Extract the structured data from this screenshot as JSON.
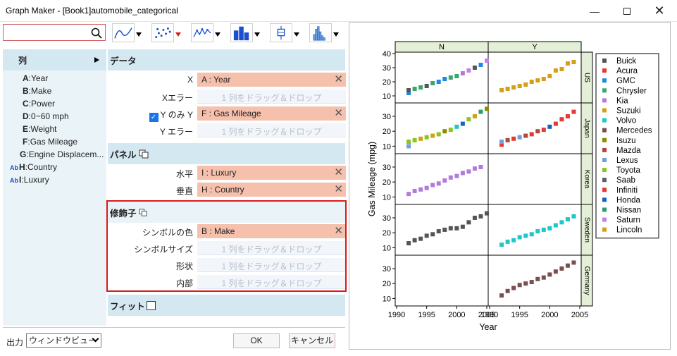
{
  "window": {
    "title": "Graph Maker - [Book1]automobile_categorical"
  },
  "search": {
    "placeholder": ""
  },
  "left_panel": {
    "header": "列",
    "columns": [
      {
        "key": "A",
        "name": "Year",
        "ab": ""
      },
      {
        "key": "B",
        "name": "Make",
        "ab": ""
      },
      {
        "key": "C",
        "name": "Power",
        "ab": ""
      },
      {
        "key": "D",
        "name": "0~60 mph",
        "ab": ""
      },
      {
        "key": "E",
        "name": "Weight",
        "ab": ""
      },
      {
        "key": "F",
        "name": "Gas Mileage",
        "ab": ""
      },
      {
        "key": "G",
        "name": "Engine Displacem...",
        "ab": ""
      },
      {
        "key": "H",
        "name": "Country",
        "ab": "Ab"
      },
      {
        "key": "I",
        "name": "Luxury",
        "ab": "Ab"
      }
    ]
  },
  "data_section": {
    "header": "データ",
    "rows": [
      {
        "label": "X",
        "value": "A : Year",
        "filled": true
      },
      {
        "label": "Xエラー",
        "value": "1 列をドラッグ＆ドロップ",
        "filled": false
      },
      {
        "label": "Y のみ Y",
        "value": "F : Gas Mileage",
        "filled": true
      },
      {
        "label": "Y エラー",
        "value": "1 列をドラッグ＆ドロップ",
        "filled": false
      }
    ]
  },
  "panel_section": {
    "header": "パネル",
    "rows": [
      {
        "label": "水平",
        "value": "I : Luxury",
        "filled": true
      },
      {
        "label": "垂直",
        "value": "H : Country",
        "filled": true
      }
    ]
  },
  "modifier_section": {
    "header": "修飾子",
    "rows": [
      {
        "label": "シンボルの色",
        "value": "B : Make",
        "filled": true
      },
      {
        "label": "シンボルサイズ",
        "value": "1 列をドラッグ＆ドロップ",
        "filled": false
      },
      {
        "label": "形状",
        "value": "1 列をドラッグ＆ドロップ",
        "filled": false
      },
      {
        "label": "内部",
        "value": "1 列をドラッグ＆ドロップ",
        "filled": false
      }
    ]
  },
  "fit_section": {
    "header": "フィット"
  },
  "bottom": {
    "output_label": "出力",
    "output_value": "ウィンドウビュー",
    "ok": "OK",
    "cancel": "キャンセル"
  },
  "chart_data": {
    "type": "scatter",
    "xlabel": "Year",
    "ylabel": "Gas Mileage (mpg)",
    "x_ticks": [
      "1990",
      "1995",
      "2000",
      "2005"
    ],
    "xlim": [
      1990,
      2005
    ],
    "columns": [
      "N",
      "Y"
    ],
    "rows": [
      {
        "name": "US",
        "ylim": [
          5,
          40
        ],
        "ticks": [
          "10",
          "20",
          "30",
          "40"
        ]
      },
      {
        "name": "Japan",
        "ylim": [
          5,
          38
        ],
        "ticks": [
          "10",
          "20",
          "30"
        ]
      },
      {
        "name": "Korea",
        "ylim": [
          5,
          38
        ],
        "ticks": [
          "10",
          "20",
          "30"
        ]
      },
      {
        "name": "Sweden",
        "ylim": [
          5,
          38
        ],
        "ticks": [
          "10",
          "20",
          "30"
        ]
      },
      {
        "name": "Germany",
        "ylim": [
          5,
          38
        ],
        "ticks": [
          "10",
          "20",
          "30"
        ]
      }
    ],
    "legend": [
      {
        "name": "Buick",
        "color": "#555555"
      },
      {
        "name": "Acura",
        "color": "#e53935"
      },
      {
        "name": "GMC",
        "color": "#1e88e5"
      },
      {
        "name": "Chrysler",
        "color": "#3aa76d"
      },
      {
        "name": "Kia",
        "color": "#b07bdc"
      },
      {
        "name": "Suzuki",
        "color": "#d4a017"
      },
      {
        "name": "Volvo",
        "color": "#1ec8c8"
      },
      {
        "name": "Mercedes",
        "color": "#7a4f4f"
      },
      {
        "name": "Isuzu",
        "color": "#8b8b00"
      },
      {
        "name": "Mazda",
        "color": "#b0483c"
      },
      {
        "name": "Lexus",
        "color": "#6fa0d8"
      },
      {
        "name": "Toyota",
        "color": "#8fc31f"
      },
      {
        "name": "Saab",
        "color": "#606060"
      },
      {
        "name": "Infiniti",
        "color": "#e53935"
      },
      {
        "name": "Honda",
        "color": "#1565c0"
      },
      {
        "name": "Nissan",
        "color": "#2e9e6a"
      },
      {
        "name": "Saturn",
        "color": "#c084e6"
      },
      {
        "name": "Lincoln",
        "color": "#d4a017"
      }
    ],
    "panels": [
      {
        "row": 0,
        "col": 0,
        "points": [
          [
            1992,
            12,
            "#1e88e5"
          ],
          [
            1992,
            14,
            "#555555"
          ],
          [
            1993,
            15,
            "#3aa76d"
          ],
          [
            1994,
            16,
            "#3aa76d"
          ],
          [
            1995,
            17,
            "#555555"
          ],
          [
            1996,
            19,
            "#3aa76d"
          ],
          [
            1997,
            20,
            "#1e88e5"
          ],
          [
            1998,
            22,
            "#1e88e5"
          ],
          [
            1999,
            23,
            "#3aa76d"
          ],
          [
            2000,
            24,
            "#3aa76d"
          ],
          [
            2001,
            26,
            "#b07bdc"
          ],
          [
            2002,
            28,
            "#c084e6"
          ],
          [
            2003,
            30,
            "#555555"
          ],
          [
            2004,
            32,
            "#1e88e5"
          ],
          [
            2005,
            35,
            "#c084e6"
          ]
        ]
      },
      {
        "row": 0,
        "col": 1,
        "points": [
          [
            1992,
            14,
            "#d4a017"
          ],
          [
            1993,
            15,
            "#d4a017"
          ],
          [
            1994,
            16,
            "#d4a017"
          ],
          [
            1995,
            17,
            "#d4a017"
          ],
          [
            1996,
            18,
            "#d4a017"
          ],
          [
            1997,
            20,
            "#d4a017"
          ],
          [
            1998,
            21,
            "#d4a017"
          ],
          [
            1999,
            22,
            "#d4a017"
          ],
          [
            2000,
            24,
            "#d4a017"
          ],
          [
            2001,
            28,
            "#d4a017"
          ],
          [
            2002,
            29,
            "#d4a017"
          ],
          [
            2003,
            33,
            "#d4a017"
          ],
          [
            2004,
            34,
            "#d4a017"
          ]
        ]
      },
      {
        "row": 1,
        "col": 0,
        "points": [
          [
            1992,
            10,
            "#6fa0d8"
          ],
          [
            1992,
            13,
            "#8fc31f"
          ],
          [
            1993,
            14,
            "#8fc31f"
          ],
          [
            1994,
            15,
            "#d4a017"
          ],
          [
            1995,
            16,
            "#8fc31f"
          ],
          [
            1996,
            17,
            "#d4a017"
          ],
          [
            1997,
            18,
            "#8fc31f"
          ],
          [
            1998,
            20,
            "#8b8b00"
          ],
          [
            1999,
            21,
            "#8fc31f"
          ],
          [
            2000,
            23,
            "#1ec8c8"
          ],
          [
            2001,
            25,
            "#1565c0"
          ],
          [
            2002,
            28,
            "#8fc31f"
          ],
          [
            2003,
            30,
            "#d4a017"
          ],
          [
            2004,
            33,
            "#2e9e6a"
          ],
          [
            2005,
            35,
            "#8b8b00"
          ]
        ]
      },
      {
        "row": 1,
        "col": 1,
        "points": [
          [
            1992,
            11,
            "#e53935"
          ],
          [
            1992,
            13,
            "#6fa0d8"
          ],
          [
            1993,
            14,
            "#b0483c"
          ],
          [
            1994,
            15,
            "#e53935"
          ],
          [
            1995,
            16,
            "#6fa0d8"
          ],
          [
            1996,
            17,
            "#b0483c"
          ],
          [
            1997,
            18,
            "#e53935"
          ],
          [
            1998,
            20,
            "#b0483c"
          ],
          [
            1999,
            21,
            "#e53935"
          ],
          [
            2000,
            23,
            "#1565c0"
          ],
          [
            2001,
            25,
            "#e53935"
          ],
          [
            2002,
            28,
            "#e53935"
          ],
          [
            2003,
            30,
            "#e53935"
          ],
          [
            2004,
            33,
            "#e53935"
          ]
        ]
      },
      {
        "row": 2,
        "col": 0,
        "points": [
          [
            1992,
            12,
            "#b07bdc"
          ],
          [
            1993,
            14,
            "#b07bdc"
          ],
          [
            1994,
            15,
            "#b07bdc"
          ],
          [
            1995,
            16,
            "#b07bdc"
          ],
          [
            1996,
            18,
            "#b07bdc"
          ],
          [
            1997,
            19,
            "#b07bdc"
          ],
          [
            1998,
            21,
            "#b07bdc"
          ],
          [
            1999,
            23,
            "#b07bdc"
          ],
          [
            2000,
            24,
            "#b07bdc"
          ],
          [
            2001,
            26,
            "#b07bdc"
          ],
          [
            2002,
            27,
            "#b07bdc"
          ],
          [
            2003,
            29,
            "#b07bdc"
          ],
          [
            2004,
            30,
            "#b07bdc"
          ]
        ]
      },
      {
        "row": 2,
        "col": 1,
        "points": []
      },
      {
        "row": 3,
        "col": 0,
        "points": [
          [
            1992,
            13,
            "#555555"
          ],
          [
            1993,
            15,
            "#555555"
          ],
          [
            1994,
            16,
            "#555555"
          ],
          [
            1995,
            18,
            "#555555"
          ],
          [
            1996,
            19,
            "#555555"
          ],
          [
            1997,
            21,
            "#555555"
          ],
          [
            1998,
            22,
            "#555555"
          ],
          [
            1999,
            23,
            "#555555"
          ],
          [
            2000,
            23,
            "#555555"
          ],
          [
            2001,
            24,
            "#555555"
          ],
          [
            2002,
            27,
            "#555555"
          ],
          [
            2003,
            30,
            "#555555"
          ],
          [
            2004,
            31,
            "#555555"
          ],
          [
            2005,
            33,
            "#555555"
          ]
        ]
      },
      {
        "row": 3,
        "col": 1,
        "points": [
          [
            1992,
            12,
            "#1ec8c8"
          ],
          [
            1993,
            14,
            "#1ec8c8"
          ],
          [
            1994,
            15,
            "#1ec8c8"
          ],
          [
            1995,
            17,
            "#1ec8c8"
          ],
          [
            1996,
            18,
            "#1ec8c8"
          ],
          [
            1997,
            19,
            "#1ec8c8"
          ],
          [
            1998,
            21,
            "#1ec8c8"
          ],
          [
            1999,
            22,
            "#1ec8c8"
          ],
          [
            2000,
            23,
            "#1ec8c8"
          ],
          [
            2001,
            25,
            "#1ec8c8"
          ],
          [
            2002,
            27,
            "#1ec8c8"
          ],
          [
            2003,
            29,
            "#1ec8c8"
          ],
          [
            2004,
            31,
            "#1ec8c8"
          ]
        ]
      },
      {
        "row": 4,
        "col": 0,
        "points": []
      },
      {
        "row": 4,
        "col": 1,
        "points": [
          [
            1992,
            12,
            "#7a4f4f"
          ],
          [
            1993,
            15,
            "#7a4f4f"
          ],
          [
            1994,
            17,
            "#7a4f4f"
          ],
          [
            1995,
            19,
            "#7a4f4f"
          ],
          [
            1996,
            20,
            "#7a4f4f"
          ],
          [
            1997,
            21,
            "#7a4f4f"
          ],
          [
            1998,
            23,
            "#7a4f4f"
          ],
          [
            1999,
            24,
            "#7a4f4f"
          ],
          [
            2000,
            26,
            "#7a4f4f"
          ],
          [
            2001,
            28,
            "#7a4f4f"
          ],
          [
            2002,
            30,
            "#7a4f4f"
          ],
          [
            2003,
            32,
            "#7a4f4f"
          ],
          [
            2004,
            34,
            "#7a4f4f"
          ]
        ]
      }
    ]
  }
}
